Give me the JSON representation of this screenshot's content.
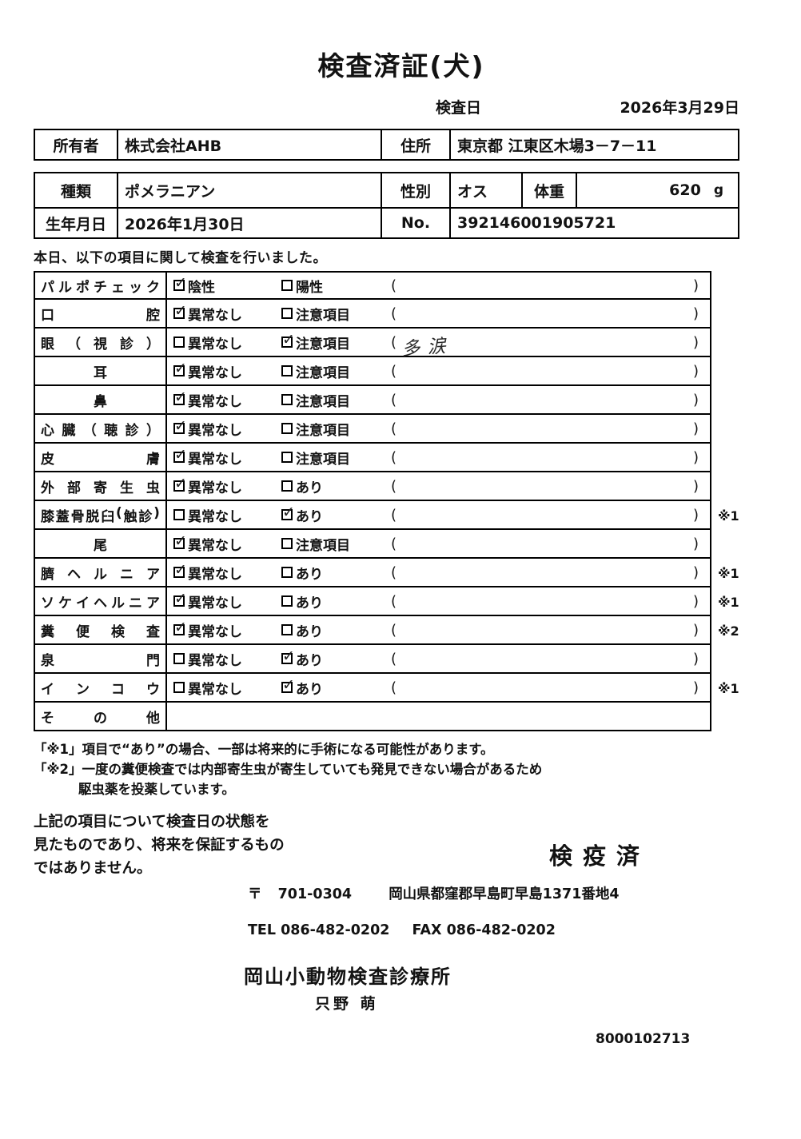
{
  "title": "検査済証(犬)",
  "exam_date": {
    "label": "検査日",
    "value": "2026年3月29日"
  },
  "owner": {
    "label": "所有者",
    "value": "株式会社AHB",
    "address_label": "住所",
    "address": "東京都 江東区木場3－7－11"
  },
  "animal": {
    "species_label": "種類",
    "species": "ポメラニアン",
    "sex_label": "性別",
    "sex": "オス",
    "weight_label": "体重",
    "weight": "620",
    "weight_unit": "g",
    "birth_label": "生年月日",
    "birth": "2026年1月30日",
    "no_label": "No.",
    "no": "392146001905721"
  },
  "intro": "本日、以下の項目に関して検査を行いました。",
  "exam_table": {
    "rows": [
      {
        "item": "パルポチェック",
        "opt1": "陰性",
        "opt1_checked": true,
        "opt2": "陽性",
        "opt2_checked": false,
        "note": "",
        "mark": ""
      },
      {
        "item": "口腔",
        "opt1": "異常なし",
        "opt1_checked": true,
        "opt2": "注意項目",
        "opt2_checked": false,
        "note": "",
        "mark": ""
      },
      {
        "item": "眼（視診）",
        "opt1": "異常なし",
        "opt1_checked": false,
        "opt2": "注意項目",
        "opt2_checked": true,
        "note": "多涙",
        "mark": ""
      },
      {
        "item": "耳",
        "opt1": "異常なし",
        "opt1_checked": true,
        "opt2": "注意項目",
        "opt2_checked": false,
        "note": "",
        "mark": ""
      },
      {
        "item": "鼻",
        "opt1": "異常なし",
        "opt1_checked": true,
        "opt2": "注意項目",
        "opt2_checked": false,
        "note": "",
        "mark": ""
      },
      {
        "item": "心臓（聴診）",
        "opt1": "異常なし",
        "opt1_checked": true,
        "opt2": "注意項目",
        "opt2_checked": false,
        "note": "",
        "mark": ""
      },
      {
        "item": "皮膚",
        "opt1": "異常なし",
        "opt1_checked": true,
        "opt2": "注意項目",
        "opt2_checked": false,
        "note": "",
        "mark": ""
      },
      {
        "item": "外部寄生虫",
        "opt1": "異常なし",
        "opt1_checked": true,
        "opt2": "あり",
        "opt2_checked": false,
        "note": "",
        "mark": ""
      },
      {
        "item": "膝蓋骨脱臼(触診)",
        "opt1": "異常なし",
        "opt1_checked": false,
        "opt2": "あり",
        "opt2_checked": true,
        "note": "",
        "mark": "※1"
      },
      {
        "item": "尾",
        "opt1": "異常なし",
        "opt1_checked": true,
        "opt2": "注意項目",
        "opt2_checked": false,
        "note": "",
        "mark": ""
      },
      {
        "item": "臍ヘルニア",
        "opt1": "異常なし",
        "opt1_checked": true,
        "opt2": "あり",
        "opt2_checked": false,
        "note": "",
        "mark": "※1"
      },
      {
        "item": "ソケイヘルニア",
        "opt1": "異常なし",
        "opt1_checked": true,
        "opt2": "あり",
        "opt2_checked": false,
        "note": "",
        "mark": "※1"
      },
      {
        "item": "糞便検査",
        "opt1": "異常なし",
        "opt1_checked": true,
        "opt2": "あり",
        "opt2_checked": false,
        "note": "",
        "mark": "※2"
      },
      {
        "item": "泉門",
        "opt1": "異常なし",
        "opt1_checked": false,
        "opt2": "あり",
        "opt2_checked": true,
        "note": "",
        "mark": ""
      },
      {
        "item": "インコウ",
        "opt1": "異常なし",
        "opt1_checked": false,
        "opt2": "あり",
        "opt2_checked": true,
        "note": "",
        "mark": "※1"
      },
      {
        "item": "その他",
        "opt1": "",
        "opt1_checked": false,
        "opt2": "",
        "opt2_checked": false,
        "note": "",
        "mark": ""
      }
    ]
  },
  "footnotes": {
    "fn1": "「※1」項目で“あり”の場合、一部は将来的に手術になる可能性があります。",
    "fn2": "「※2」一度の糞便検査では内部寄生虫が寄生していても発見できない場合があるため",
    "fn2b": "駆虫薬を投薬しています。"
  },
  "disclaimer": [
    "上記の項目について検査日の状態を",
    "見たものであり、将来を保証するもの",
    "ではありません。"
  ],
  "stamp": "検疫済",
  "clinic": {
    "postal_mark": "〒",
    "postal_code": "701-0304",
    "address": "岡山県都窪郡早島町早島1371番地4",
    "tel": "TEL 086-482-0202",
    "fax": "FAX 086-482-0202",
    "name": "岡山小動物検査診療所",
    "vet": "只野 萌"
  },
  "serial": "8000102713"
}
